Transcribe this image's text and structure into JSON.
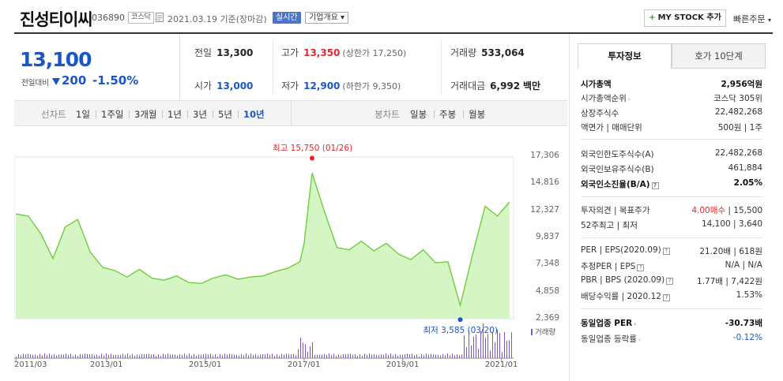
{
  "header": {
    "name": "진성티이씨",
    "code": "036890",
    "market": "코스닥",
    "date": "2021.03.19  기준(장마감)",
    "realtime": "실시간",
    "company_info": "기업개요 ▾",
    "mystock": "MY STOCK 추가",
    "quick_order": "빠른주문",
    "accent_color": "#1a56c8",
    "up_color": "#e8242b"
  },
  "price": {
    "current": "13,100",
    "change_label": "전일대비",
    "change_amount": "200",
    "change_pct": "-1.50%",
    "direction": "down"
  },
  "stats": {
    "prev_close": {
      "label": "전일",
      "value": "13,300"
    },
    "open": {
      "label": "시가",
      "value": "13,000"
    },
    "high": {
      "label": "고가",
      "value": "13,350",
      "sub": "(상한가 17,250)"
    },
    "low": {
      "label": "저가",
      "value": "12,900",
      "sub": "(하한가 9,350)"
    },
    "volume": {
      "label": "거래량",
      "value": "533,064"
    },
    "amount": {
      "label": "거래대금",
      "value": "6,992",
      "unit": "백만"
    }
  },
  "toolbar": {
    "line_label": "선차트",
    "periods": [
      "1일",
      "1주일",
      "3개월",
      "1년",
      "3년",
      "5년",
      "10년"
    ],
    "active_period": "10년",
    "candle_label": "봉차트",
    "candles": [
      "일봉",
      "주봉",
      "월봉"
    ]
  },
  "chart_data": {
    "type": "area",
    "title": "",
    "y_ticks": [
      "17,306",
      "14,816",
      "12,327",
      "9,837",
      "7,348",
      "4,858",
      "2,369"
    ],
    "ylim": [
      2369,
      17306
    ],
    "x_ticks": [
      "2011/03",
      "2013/01",
      "2015/01",
      "2017/01",
      "2019/01",
      "2021/01"
    ],
    "x": [
      "2011-03",
      "2011-06",
      "2011-09",
      "2011-12",
      "2012-03",
      "2012-06",
      "2012-09",
      "2012-12",
      "2013-03",
      "2013-06",
      "2013-09",
      "2013-12",
      "2014-03",
      "2014-06",
      "2014-09",
      "2014-12",
      "2015-03",
      "2015-06",
      "2015-09",
      "2015-12",
      "2016-03",
      "2016-06",
      "2016-09",
      "2016-12",
      "2017-01",
      "2017-03",
      "2017-06",
      "2017-09",
      "2017-12",
      "2018-03",
      "2018-06",
      "2018-09",
      "2018-12",
      "2019-03",
      "2019-06",
      "2019-09",
      "2019-12",
      "2020-03",
      "2020-06",
      "2020-09",
      "2020-12",
      "2021-03"
    ],
    "y": [
      12000,
      11800,
      10200,
      7900,
      10800,
      11500,
      8500,
      7100,
      6800,
      6200,
      6900,
      6100,
      5900,
      6300,
      5700,
      5600,
      6100,
      6400,
      6000,
      6200,
      6300,
      6700,
      7000,
      7600,
      9300,
      15750,
      12200,
      8900,
      8700,
      9500,
      8600,
      9300,
      8300,
      7800,
      8700,
      7500,
      7600,
      3585,
      8300,
      12700,
      11800,
      13100
    ],
    "volume_label": "거래량",
    "high_label": "최고 15,750 (01/26)",
    "low_label": "최저 3,585 (03/20)",
    "area_color": "#d6f5c4",
    "line_color": "#6fcf3a",
    "volume_color": "#7b54c9",
    "high_color": "#e8242b",
    "low_color": "#1a56c8",
    "grid": false
  },
  "right": {
    "tabs": [
      "투자정보",
      "호가 10단계"
    ],
    "rows": {
      "market_cap": {
        "l": "시가총액",
        "r": "2,956억원"
      },
      "cap_rank": {
        "l": "시가총액순위",
        "r": "코스닥 305위"
      },
      "shares": {
        "l": "상장주식수",
        "r": "22,482,268"
      },
      "par": {
        "l": "액면가  |  매매단위",
        "r": "500원  |  1주"
      },
      "foreign_limit": {
        "l": "외국인한도주식수(A)",
        "r": "22,482,268"
      },
      "foreign_hold": {
        "l": "외국인보유주식수(B)",
        "r": "461,884"
      },
      "foreign_ratio": {
        "l": "외국인소진율(B/A)",
        "r": "2.05%"
      },
      "opinion": {
        "l": "투자의견  |  목표주가",
        "r1": "4.00매수",
        "r2": "  |  15,500"
      },
      "week52": {
        "l": "52주최고  |  최저",
        "r": "14,100  |  3,640"
      },
      "per": {
        "l": "PER  |  EPS(2020.09)",
        "r": "21.20배  |  618원"
      },
      "est_per": {
        "l": "추정PER  |  EPS",
        "r": "N/A  |  N/A"
      },
      "pbr": {
        "l": "PBR  |  BPS (2020.09)",
        "r": "1.77배  |  7,422원"
      },
      "dividend": {
        "l": "배당수익률  |  2020.12",
        "r": "1.53%"
      },
      "sector_per": {
        "l": "동일업종 PER",
        "r": "-30.73배"
      },
      "sector_rate": {
        "l": "동일업종 등락률",
        "r": "-0.12%"
      }
    }
  }
}
